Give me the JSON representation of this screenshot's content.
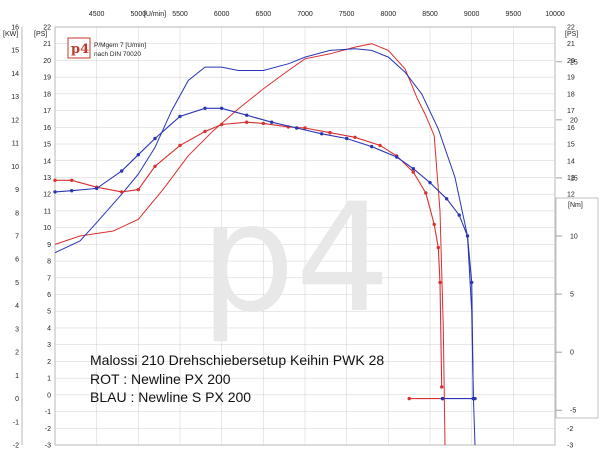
{
  "logo": {
    "text": "p4"
  },
  "watermark": {
    "text": "p4"
  },
  "header": {
    "line1": "P/Mgem 7 [U/min]",
    "line2": "nach DIN 70020"
  },
  "units": {
    "top_axis": "[U/min]",
    "kw": "[KW]",
    "ps_left": "[PS]",
    "ps_right": "[PS]",
    "nm": "[Nm]"
  },
  "annotations": [
    "Malossi 210 Drehschiebersetup Keihin PWK 28",
    "ROT   :    Newline     PX 200",
    "BLAU :    Newline S PX 200"
  ],
  "colors": {
    "red": "#d93030",
    "blue": "#2a35b5",
    "grid": "#d0d0d0"
  },
  "chart_data": {
    "type": "line",
    "x_axis": {
      "label": "[U/min]",
      "range": [
        4000,
        10000
      ],
      "ticks": [
        4500,
        5000,
        5500,
        6000,
        6500,
        7000,
        7500,
        8000,
        8500,
        9000,
        9500,
        10000
      ]
    },
    "y_left_kw": {
      "label": "[KW]",
      "range": [
        -2,
        16
      ],
      "ticks": [
        -2,
        -1,
        0,
        1,
        2,
        3,
        4,
        5,
        6,
        7,
        8,
        9,
        10,
        11,
        12,
        13,
        14,
        15,
        16
      ]
    },
    "y_left_ps": {
      "label": "[PS]",
      "range": [
        -3,
        22
      ],
      "ticks": [
        -3,
        -2,
        -1,
        0,
        1,
        2,
        3,
        4,
        5,
        6,
        7,
        8,
        9,
        10,
        11,
        12,
        13,
        14,
        15,
        16,
        17,
        18,
        19,
        20,
        21,
        22
      ]
    },
    "y_right_ps": {
      "label": "[PS]",
      "range": [
        -3,
        22
      ],
      "ticks": [
        -3,
        -2,
        -1,
        0,
        1,
        2,
        3,
        4,
        5,
        6,
        7,
        8,
        9,
        10,
        11,
        12,
        13,
        14,
        15,
        16,
        17,
        18,
        19,
        20,
        21,
        22
      ]
    },
    "y_right_nm": {
      "label": "[Nm]",
      "range": [
        -8,
        28
      ],
      "ticks": [
        -5,
        0,
        5,
        10,
        15,
        20,
        25
      ]
    },
    "grid": true,
    "series": [
      {
        "color": "red",
        "kind": "power",
        "unit": "PS",
        "x": [
          4000,
          4300,
          4700,
          5000,
          5300,
          5600,
          5900,
          6200,
          6500,
          6800,
          7000,
          7300,
          7600,
          7800,
          8000,
          8200,
          8350,
          8450,
          8550,
          8620,
          8660,
          8680
        ],
        "y": [
          9.0,
          9.5,
          9.8,
          10.5,
          12.3,
          14.3,
          15.8,
          17.1,
          18.3,
          19.4,
          20.1,
          20.4,
          20.8,
          21.0,
          20.6,
          19.5,
          17.7,
          16.7,
          15.5,
          11.0,
          4.0,
          -3.0
        ]
      },
      {
        "color": "blue",
        "kind": "power",
        "unit": "PS",
        "x": [
          4000,
          4300,
          4500,
          4800,
          5000,
          5200,
          5400,
          5600,
          5800,
          6000,
          6200,
          6500,
          6800,
          7000,
          7300,
          7600,
          7800,
          8000,
          8200,
          8400,
          8600,
          8800,
          8950,
          9000,
          9020,
          9040
        ],
        "y": [
          8.5,
          9.2,
          10.3,
          12.0,
          13.2,
          14.8,
          17.0,
          18.8,
          19.6,
          19.6,
          19.4,
          19.4,
          19.8,
          20.2,
          20.6,
          20.7,
          20.6,
          20.2,
          19.3,
          18.0,
          15.9,
          13.0,
          9.5,
          5.0,
          0.0,
          -3.0
        ]
      },
      {
        "color": "red",
        "kind": "torque",
        "unit": "Nm",
        "x": [
          4000,
          4200,
          4500,
          4800,
          5000,
          5200,
          5500,
          5800,
          6000,
          6300,
          6500,
          6800,
          7000,
          7300,
          7600,
          7900,
          8100,
          8300,
          8450,
          8550,
          8600,
          8620,
          8640
        ],
        "y": [
          14.8,
          14.8,
          14.2,
          13.8,
          14.0,
          16.0,
          17.8,
          19.0,
          19.6,
          19.8,
          19.7,
          19.4,
          19.3,
          18.9,
          18.5,
          17.8,
          16.9,
          15.5,
          13.7,
          11.0,
          9.0,
          6.0,
          -3.0
        ]
      },
      {
        "color": "blue",
        "kind": "torque",
        "unit": "Nm",
        "x": [
          4000,
          4200,
          4500,
          4800,
          5000,
          5200,
          5500,
          5800,
          6000,
          6300,
          6600,
          6900,
          7200,
          7500,
          7800,
          8100,
          8300,
          8500,
          8700,
          8850,
          8950,
          9000,
          9020
        ],
        "y": [
          13.8,
          13.9,
          14.1,
          15.6,
          17.0,
          18.4,
          20.3,
          21.0,
          21.0,
          20.4,
          19.8,
          19.3,
          18.8,
          18.4,
          17.7,
          16.8,
          15.8,
          14.6,
          13.2,
          11.8,
          10.0,
          6.0,
          -4.0
        ]
      },
      {
        "color": "red",
        "kind": "baseline",
        "unit": "Nm",
        "x": [
          8250,
          8650
        ],
        "y": [
          -4.0,
          -4.0
        ]
      },
      {
        "color": "blue",
        "kind": "baseline",
        "unit": "Nm",
        "x": [
          8650,
          9040
        ],
        "y": [
          -4.0,
          -4.0
        ]
      }
    ]
  }
}
